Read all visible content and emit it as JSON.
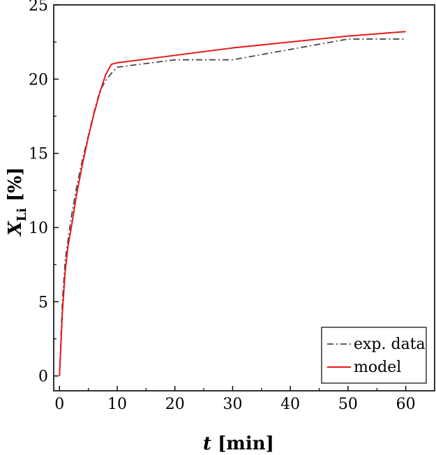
{
  "chart_data": {
    "type": "line",
    "xlabel": {
      "var": "t",
      "unit": "[min]"
    },
    "ylabel": {
      "var": "X",
      "sub": "Li",
      "unit": "[%]"
    },
    "xlim": [
      -1,
      65
    ],
    "ylim": [
      -1,
      25
    ],
    "xticks": [
      0,
      10,
      20,
      30,
      40,
      50,
      60
    ],
    "yticks": [
      0,
      5,
      10,
      15,
      20,
      25
    ],
    "grid": false,
    "legend_position": "bottom-right",
    "series": [
      {
        "name": "exp. data",
        "color": "#4a4a4a",
        "style": "dash-dot",
        "x": [
          0,
          0.5,
          1,
          2,
          3,
          4,
          5,
          6,
          7,
          8,
          9,
          10,
          20,
          30,
          40,
          50,
          60
        ],
        "y": [
          0,
          5.0,
          7.8,
          10.6,
          12.8,
          14.6,
          16.2,
          17.8,
          19.2,
          19.9,
          20.4,
          20.8,
          21.3,
          21.3,
          22.0,
          22.7,
          22.7
        ]
      },
      {
        "name": "model",
        "color": "#e8191c",
        "style": "solid",
        "x": [
          0,
          0.5,
          1,
          1.5,
          2,
          3,
          4,
          5,
          6,
          7,
          8,
          9,
          10,
          20,
          30,
          40,
          50,
          60
        ],
        "y": [
          0,
          4.3,
          7.1,
          8.8,
          9.9,
          12.3,
          14.3,
          16.1,
          17.7,
          19.1,
          20.3,
          21.0,
          21.1,
          21.6,
          22.1,
          22.5,
          22.9,
          23.2
        ]
      }
    ]
  }
}
